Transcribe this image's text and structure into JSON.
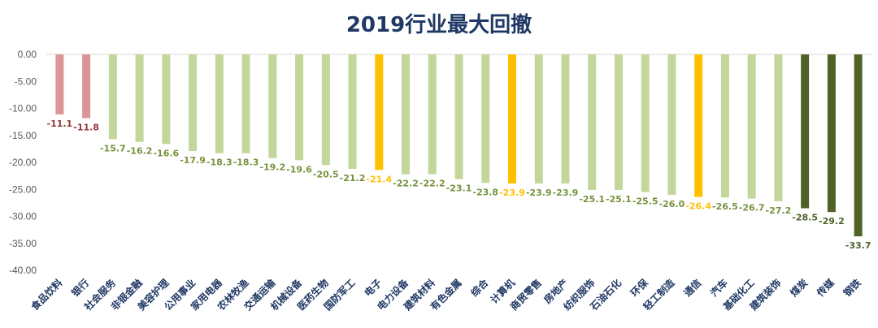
{
  "chart_data": {
    "type": "bar",
    "title": "2019行业最大回撤",
    "xlabel": "",
    "ylabel": "",
    "ylim": [
      -40,
      0
    ],
    "yticks": [
      0,
      -5,
      -10,
      -15,
      -20,
      -25,
      -30,
      -35,
      -40
    ],
    "ytick_labels": [
      "0.00",
      "-5.00",
      "-10.00",
      "-15.00",
      "-20.00",
      "-25.00",
      "-30.00",
      "-35.00",
      "-40.00"
    ],
    "grid": false,
    "legend": "none",
    "categories": [
      "食品饮料",
      "银行",
      "社会服务",
      "非银金融",
      "美容护理",
      "公用事业",
      "家用电器",
      "农林牧渔",
      "交通运输",
      "机械设备",
      "医药生物",
      "国防军工",
      "电子",
      "电力设备",
      "建筑材料",
      "有色金属",
      "综合",
      "计算机",
      "商贸零售",
      "房地产",
      "纺织服饰",
      "石油石化",
      "环保",
      "轻工制造",
      "通信",
      "汽车",
      "基础化工",
      "建筑装饰",
      "煤炭",
      "传媒",
      "钢铁"
    ],
    "values": [
      -11.1,
      -11.8,
      -15.7,
      -16.2,
      -16.6,
      -17.9,
      -18.3,
      -18.3,
      -19.2,
      -19.6,
      -20.5,
      -21.2,
      -21.4,
      -22.2,
      -22.2,
      -23.1,
      -23.8,
      -23.9,
      -23.9,
      -23.9,
      -25.1,
      -25.1,
      -25.5,
      -26.0,
      -26.4,
      -26.5,
      -26.7,
      -27.2,
      -28.5,
      -29.2,
      -33.7
    ],
    "data_labels": [
      "-11.1",
      "-11.8",
      "-15.7",
      "-16.2",
      "-16.6",
      "-17.9",
      "-18.3",
      "-18.3",
      "-19.2",
      "-19.6",
      "-20.5",
      "-21.2",
      "-21.4",
      "-22.2",
      "-22.2",
      "-23.1",
      "-23.8",
      "-23.9",
      "-23.9",
      "-23.9",
      "-25.1",
      "-25.1",
      "-25.5",
      "-26.0",
      "-26.4",
      "-26.5",
      "-26.7",
      "-27.2",
      "-28.5",
      "-29.2",
      "-33.7"
    ],
    "bar_groups": [
      "red",
      "red",
      "light",
      "light",
      "light",
      "light",
      "light",
      "light",
      "light",
      "light",
      "light",
      "light",
      "yellow",
      "light",
      "light",
      "light",
      "light",
      "yellow",
      "light",
      "light",
      "light",
      "light",
      "light",
      "light",
      "yellow",
      "light",
      "light",
      "light",
      "dark",
      "dark",
      "dark"
    ],
    "colors": {
      "red": {
        "bar": "#d99694",
        "label": "#943634"
      },
      "light": {
        "bar": "#c3d69b",
        "label": "#76923c"
      },
      "yellow": {
        "bar": "#ffc000",
        "label": "#ffc000"
      },
      "dark": {
        "bar": "#4f6228",
        "label": "#4f6228"
      }
    },
    "axis_color": "#d9d9d9"
  }
}
